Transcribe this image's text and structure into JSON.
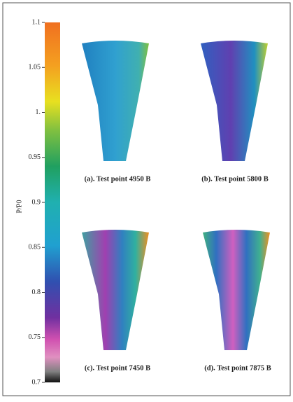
{
  "colorbar": {
    "label": "P/P0",
    "range": [
      0.7,
      1.1
    ],
    "ticks": [
      0.7,
      0.75,
      0.8,
      0.85,
      0.9,
      0.95,
      {
        "value": 1,
        "label": "1."
      },
      1.05,
      1.1
    ]
  },
  "panels": [
    {
      "caption": "(a). Test point 4950 B"
    },
    {
      "caption": "(b). Test point 5800 B"
    },
    {
      "caption": "(c). Test point 7450 B"
    },
    {
      "caption": "(d). Test point 7875 B"
    }
  ]
}
